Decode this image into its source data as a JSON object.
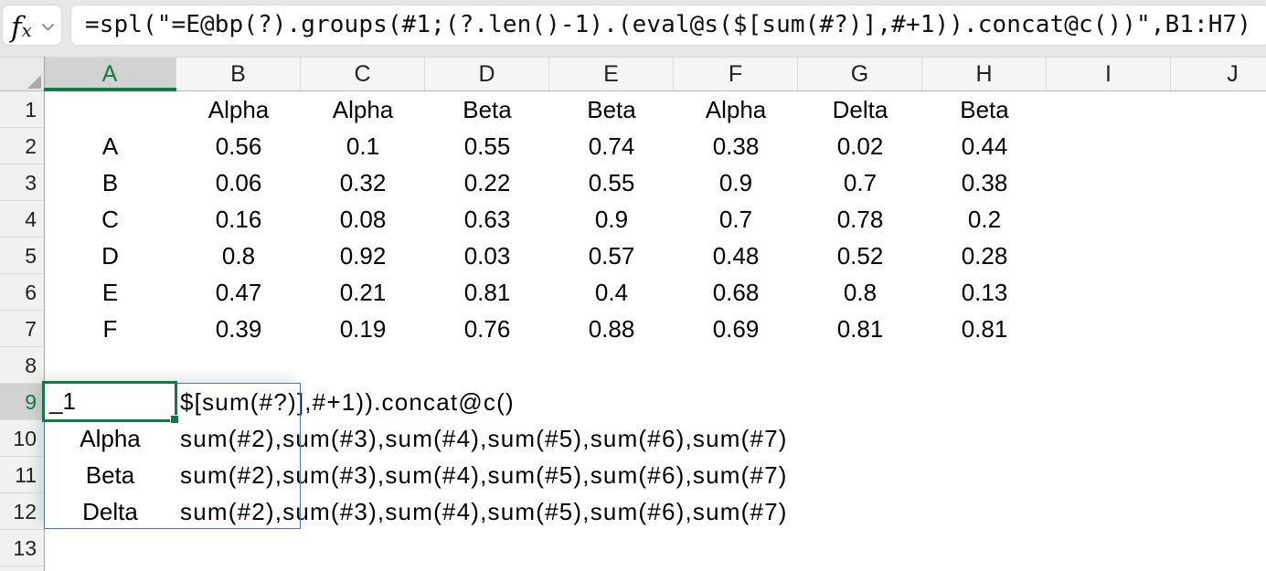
{
  "formula_bar": {
    "fx_label": "fx",
    "formula": "=spl(\"=E@bp(?).groups(#1;(?.len()-1).(eval@s($[sum(#?)],#+1)).concat@c())\",B1:H7)"
  },
  "col_headers": [
    "A",
    "B",
    "C",
    "D",
    "E",
    "F",
    "G",
    "H",
    "I",
    "J"
  ],
  "row_headers": [
    "1",
    "2",
    "3",
    "4",
    "5",
    "6",
    "7",
    "8",
    "9",
    "10",
    "11",
    "12",
    "13"
  ],
  "selection": {
    "active_cell": "A9",
    "value": "_1",
    "column": "A",
    "row": "9",
    "result_range": "A9:B12"
  },
  "colors": {
    "accent_green": "#107C41",
    "range_border_blue": "#4a77bb",
    "selected_header_bg": "#d2d2d2"
  },
  "cells": [
    {
      "ref": "B1",
      "text": "Alpha",
      "align": "center"
    },
    {
      "ref": "C1",
      "text": "Alpha",
      "align": "center"
    },
    {
      "ref": "D1",
      "text": "Beta",
      "align": "center"
    },
    {
      "ref": "E1",
      "text": "Beta",
      "align": "center"
    },
    {
      "ref": "F1",
      "text": "Alpha",
      "align": "center"
    },
    {
      "ref": "G1",
      "text": "Delta",
      "align": "center"
    },
    {
      "ref": "H1",
      "text": "Beta",
      "align": "center"
    },
    {
      "ref": "A2",
      "text": "A",
      "align": "center"
    },
    {
      "ref": "B2",
      "text": "0.56",
      "align": "center"
    },
    {
      "ref": "C2",
      "text": "0.1",
      "align": "center"
    },
    {
      "ref": "D2",
      "text": "0.55",
      "align": "center"
    },
    {
      "ref": "E2",
      "text": "0.74",
      "align": "center"
    },
    {
      "ref": "F2",
      "text": "0.38",
      "align": "center"
    },
    {
      "ref": "G2",
      "text": "0.02",
      "align": "center"
    },
    {
      "ref": "H2",
      "text": "0.44",
      "align": "center"
    },
    {
      "ref": "A3",
      "text": "B",
      "align": "center"
    },
    {
      "ref": "B3",
      "text": "0.06",
      "align": "center"
    },
    {
      "ref": "C3",
      "text": "0.32",
      "align": "center"
    },
    {
      "ref": "D3",
      "text": "0.22",
      "align": "center"
    },
    {
      "ref": "E3",
      "text": "0.55",
      "align": "center"
    },
    {
      "ref": "F3",
      "text": "0.9",
      "align": "center"
    },
    {
      "ref": "G3",
      "text": "0.7",
      "align": "center"
    },
    {
      "ref": "H3",
      "text": "0.38",
      "align": "center"
    },
    {
      "ref": "A4",
      "text": "C",
      "align": "center"
    },
    {
      "ref": "B4",
      "text": "0.16",
      "align": "center"
    },
    {
      "ref": "C4",
      "text": "0.08",
      "align": "center"
    },
    {
      "ref": "D4",
      "text": "0.63",
      "align": "center"
    },
    {
      "ref": "E4",
      "text": "0.9",
      "align": "center"
    },
    {
      "ref": "F4",
      "text": "0.7",
      "align": "center"
    },
    {
      "ref": "G4",
      "text": "0.78",
      "align": "center"
    },
    {
      "ref": "H4",
      "text": "0.2",
      "align": "center"
    },
    {
      "ref": "A5",
      "text": "D",
      "align": "center"
    },
    {
      "ref": "B5",
      "text": "0.8",
      "align": "center"
    },
    {
      "ref": "C5",
      "text": "0.92",
      "align": "center"
    },
    {
      "ref": "D5",
      "text": "0.03",
      "align": "center"
    },
    {
      "ref": "E5",
      "text": "0.57",
      "align": "center"
    },
    {
      "ref": "F5",
      "text": "0.48",
      "align": "center"
    },
    {
      "ref": "G5",
      "text": "0.52",
      "align": "center"
    },
    {
      "ref": "H5",
      "text": "0.28",
      "align": "center"
    },
    {
      "ref": "A6",
      "text": "E",
      "align": "center"
    },
    {
      "ref": "B6",
      "text": "0.47",
      "align": "center"
    },
    {
      "ref": "C6",
      "text": "0.21",
      "align": "center"
    },
    {
      "ref": "D6",
      "text": "0.81",
      "align": "center"
    },
    {
      "ref": "E6",
      "text": "0.4",
      "align": "center"
    },
    {
      "ref": "F6",
      "text": "0.68",
      "align": "center"
    },
    {
      "ref": "G6",
      "text": "0.8",
      "align": "center"
    },
    {
      "ref": "H6",
      "text": "0.13",
      "align": "center"
    },
    {
      "ref": "A7",
      "text": "F",
      "align": "center"
    },
    {
      "ref": "B7",
      "text": "0.39",
      "align": "center"
    },
    {
      "ref": "C7",
      "text": "0.19",
      "align": "center"
    },
    {
      "ref": "D7",
      "text": "0.76",
      "align": "center"
    },
    {
      "ref": "E7",
      "text": "0.88",
      "align": "center"
    },
    {
      "ref": "F7",
      "text": "0.69",
      "align": "center"
    },
    {
      "ref": "G7",
      "text": "0.81",
      "align": "center"
    },
    {
      "ref": "H7",
      "text": "0.81",
      "align": "center"
    },
    {
      "ref": "B9",
      "text": "$[sum(#?)],#+1)).concat@c()",
      "align": "left"
    },
    {
      "ref": "A10",
      "text": "Alpha",
      "align": "center"
    },
    {
      "ref": "B10",
      "text": "sum(#2),sum(#3),sum(#4),sum(#5),sum(#6),sum(#7)",
      "align": "left"
    },
    {
      "ref": "A11",
      "text": "Beta",
      "align": "center"
    },
    {
      "ref": "B11",
      "text": "sum(#2),sum(#3),sum(#4),sum(#5),sum(#6),sum(#7)",
      "align": "left"
    },
    {
      "ref": "A12",
      "text": "Delta",
      "align": "center"
    },
    {
      "ref": "B12",
      "text": "sum(#2),sum(#3),sum(#4),sum(#5),sum(#6),sum(#7)",
      "align": "left"
    }
  ]
}
